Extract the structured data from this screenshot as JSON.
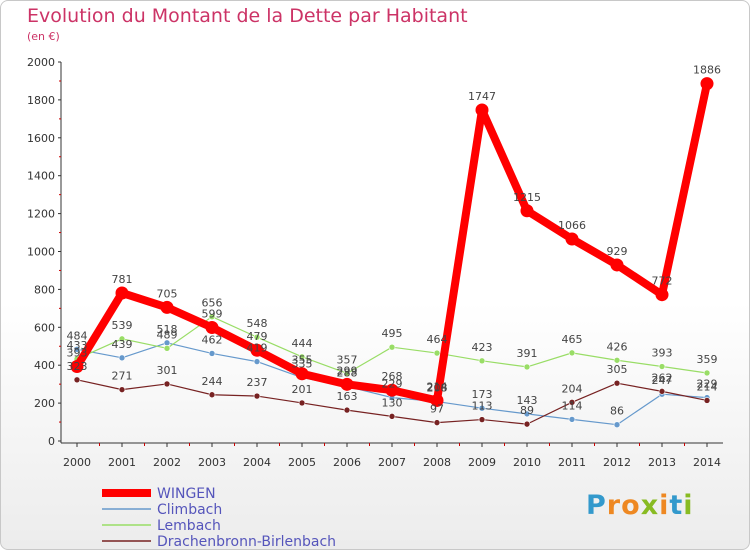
{
  "chart_data": {
    "type": "line",
    "title": "Evolution du Montant de la Dette par Habitant",
    "subtitle": "(en €)",
    "x": [
      "2000",
      "2001",
      "2002",
      "2003",
      "2004",
      "2005",
      "2006",
      "2007",
      "2008",
      "2009",
      "2010",
      "2011",
      "2012",
      "2013",
      "2014"
    ],
    "ylim": [
      0,
      2000
    ],
    "yticks": [
      0,
      200,
      400,
      600,
      800,
      1000,
      1200,
      1400,
      1600,
      1800,
      2000
    ],
    "grid": false,
    "legend_position": "bottom-left",
    "series": [
      {
        "name": "WINGEN",
        "color": "#ff0000",
        "values": [
          393,
          781,
          705,
          599,
          479,
          355,
          299,
          268,
          214,
          1747,
          1215,
          1066,
          929,
          772,
          1886
        ]
      },
      {
        "name": "Climbach",
        "color": "#6699cc",
        "values": [
          484,
          439,
          518,
          462,
          419,
          335,
          288,
          229,
          208,
          173,
          143,
          114,
          86,
          247,
          229
        ]
      },
      {
        "name": "Lembach",
        "color": "#99dd66",
        "values": [
          433,
          539,
          489,
          656,
          548,
          444,
          357,
          495,
          464,
          423,
          391,
          465,
          426,
          393,
          359
        ]
      },
      {
        "name": "Drachenbronn-Birlenbach",
        "color": "#772222",
        "values": [
          323,
          271,
          301,
          244,
          237,
          201,
          163,
          130,
          97,
          113,
          89,
          204,
          305,
          262,
          214
        ]
      }
    ]
  },
  "logo": {
    "letters": [
      "P",
      "r",
      "o",
      "x",
      "i",
      "t",
      "i"
    ],
    "colors": [
      "#3399cc",
      "#ee8822",
      "#ee8822",
      "#88bb22",
      "#ee8822",
      "#3399cc",
      "#88bb22"
    ]
  }
}
